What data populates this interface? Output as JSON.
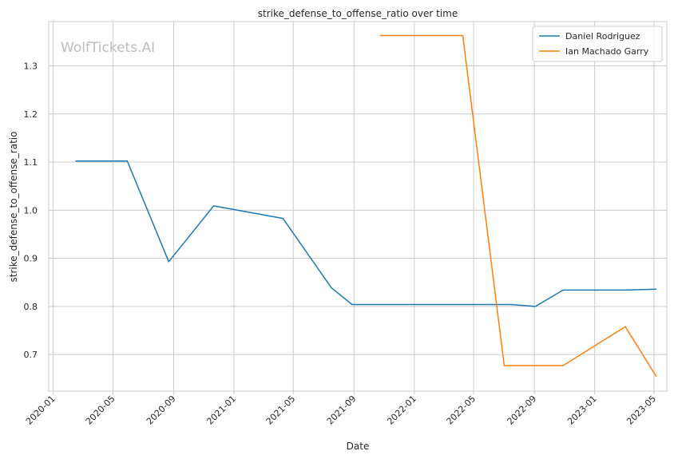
{
  "chart_data": {
    "type": "line",
    "title": "strike_defense_to_offense_ratio over time",
    "xlabel": "Date",
    "ylabel": "strike_defense_to_offense_ratio",
    "watermark": "WolfTickets.AI",
    "grid": true,
    "legend_position": "top-right",
    "x_type": "date",
    "xlim": [
      "2019-12-23",
      "2023-05-27"
    ],
    "ylim": [
      0.624,
      1.392
    ],
    "x_ticks": [
      "2020-01",
      "2020-05",
      "2020-09",
      "2021-01",
      "2021-05",
      "2021-09",
      "2022-01",
      "2022-05",
      "2022-09",
      "2023-01",
      "2023-05"
    ],
    "x_tick_dates": [
      "2020-01-01",
      "2020-05-01",
      "2020-09-01",
      "2021-01-01",
      "2021-05-01",
      "2021-09-01",
      "2022-01-01",
      "2022-05-01",
      "2022-09-01",
      "2023-01-01",
      "2023-05-01"
    ],
    "y_ticks": [
      0.7,
      0.8,
      0.9,
      1.0,
      1.1,
      1.2,
      1.3
    ],
    "series": [
      {
        "name": "Daniel Rodriguez",
        "color": "#1f77b4",
        "points": [
          {
            "x": "2020-02-15",
            "y": 1.102
          },
          {
            "x": "2020-05-30",
            "y": 1.102
          },
          {
            "x": "2020-08-22",
            "y": 0.893
          },
          {
            "x": "2020-11-21",
            "y": 1.009
          },
          {
            "x": "2021-04-10",
            "y": 0.983
          },
          {
            "x": "2021-07-17",
            "y": 0.839
          },
          {
            "x": "2021-08-28",
            "y": 0.804
          },
          {
            "x": "2022-04-16",
            "y": 0.804
          },
          {
            "x": "2022-07-16",
            "y": 0.804
          },
          {
            "x": "2022-09-03",
            "y": 0.8
          },
          {
            "x": "2022-10-29",
            "y": 0.834
          },
          {
            "x": "2023-03-04",
            "y": 0.834
          },
          {
            "x": "2023-05-06",
            "y": 0.836
          }
        ]
      },
      {
        "name": "Ian Machado Garry",
        "color": "#ff7f0e",
        "points": [
          {
            "x": "2021-10-23",
            "y": 1.363
          },
          {
            "x": "2022-04-09",
            "y": 1.363
          },
          {
            "x": "2022-07-02",
            "y": 0.677
          },
          {
            "x": "2022-10-29",
            "y": 0.677
          },
          {
            "x": "2023-03-04",
            "y": 0.758
          },
          {
            "x": "2023-05-06",
            "y": 0.654
          }
        ]
      }
    ]
  }
}
